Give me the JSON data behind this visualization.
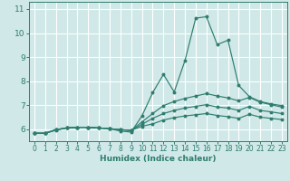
{
  "xlabel": "Humidex (Indice chaleur)",
  "xlim": [
    -0.5,
    23.5
  ],
  "ylim": [
    5.5,
    11.3
  ],
  "yticks": [
    6,
    7,
    8,
    9,
    10,
    11
  ],
  "xticks": [
    0,
    1,
    2,
    3,
    4,
    5,
    6,
    7,
    8,
    9,
    10,
    11,
    12,
    13,
    14,
    15,
    16,
    17,
    18,
    19,
    20,
    21,
    22,
    23
  ],
  "background_color": "#d0e8e8",
  "grid_color": "#ffffff",
  "line_color": "#2e7d6e",
  "lines": [
    {
      "x": [
        0,
        1,
        2,
        3,
        4,
        5,
        6,
        7,
        8,
        9,
        10,
        11,
        12,
        13,
        14,
        15,
        16,
        17,
        18,
        19,
        20,
        21,
        22,
        23
      ],
      "y": [
        5.83,
        5.83,
        5.95,
        6.05,
        6.08,
        6.08,
        6.05,
        6.02,
        5.92,
        5.88,
        6.55,
        7.52,
        8.28,
        7.55,
        8.85,
        10.62,
        10.68,
        9.52,
        9.7,
        7.82,
        7.35,
        7.15,
        7.05,
        6.98
      ]
    },
    {
      "x": [
        0,
        1,
        2,
        3,
        4,
        5,
        6,
        7,
        8,
        9,
        10,
        11,
        12,
        13,
        14,
        15,
        16,
        17,
        18,
        19,
        20,
        21,
        22,
        23
      ],
      "y": [
        5.83,
        5.83,
        5.98,
        6.05,
        6.08,
        6.08,
        6.05,
        6.02,
        5.98,
        5.95,
        6.3,
        6.65,
        6.98,
        7.15,
        7.28,
        7.38,
        7.48,
        7.38,
        7.3,
        7.18,
        7.32,
        7.12,
        7.02,
        6.92
      ]
    },
    {
      "x": [
        0,
        1,
        2,
        3,
        4,
        5,
        6,
        7,
        8,
        9,
        10,
        11,
        12,
        13,
        14,
        15,
        16,
        17,
        18,
        19,
        20,
        21,
        22,
        23
      ],
      "y": [
        5.83,
        5.83,
        5.98,
        6.05,
        6.08,
        6.08,
        6.05,
        6.02,
        5.98,
        5.95,
        6.2,
        6.45,
        6.65,
        6.78,
        6.88,
        6.95,
        7.02,
        6.92,
        6.88,
        6.78,
        6.95,
        6.78,
        6.72,
        6.65
      ]
    },
    {
      "x": [
        0,
        1,
        2,
        3,
        4,
        5,
        6,
        7,
        8,
        9,
        10,
        11,
        12,
        13,
        14,
        15,
        16,
        17,
        18,
        19,
        20,
        21,
        22,
        23
      ],
      "y": [
        5.83,
        5.83,
        5.98,
        6.05,
        6.08,
        6.08,
        6.05,
        6.02,
        5.98,
        5.95,
        6.12,
        6.22,
        6.38,
        6.48,
        6.55,
        6.6,
        6.65,
        6.57,
        6.52,
        6.45,
        6.62,
        6.5,
        6.45,
        6.4
      ]
    }
  ]
}
